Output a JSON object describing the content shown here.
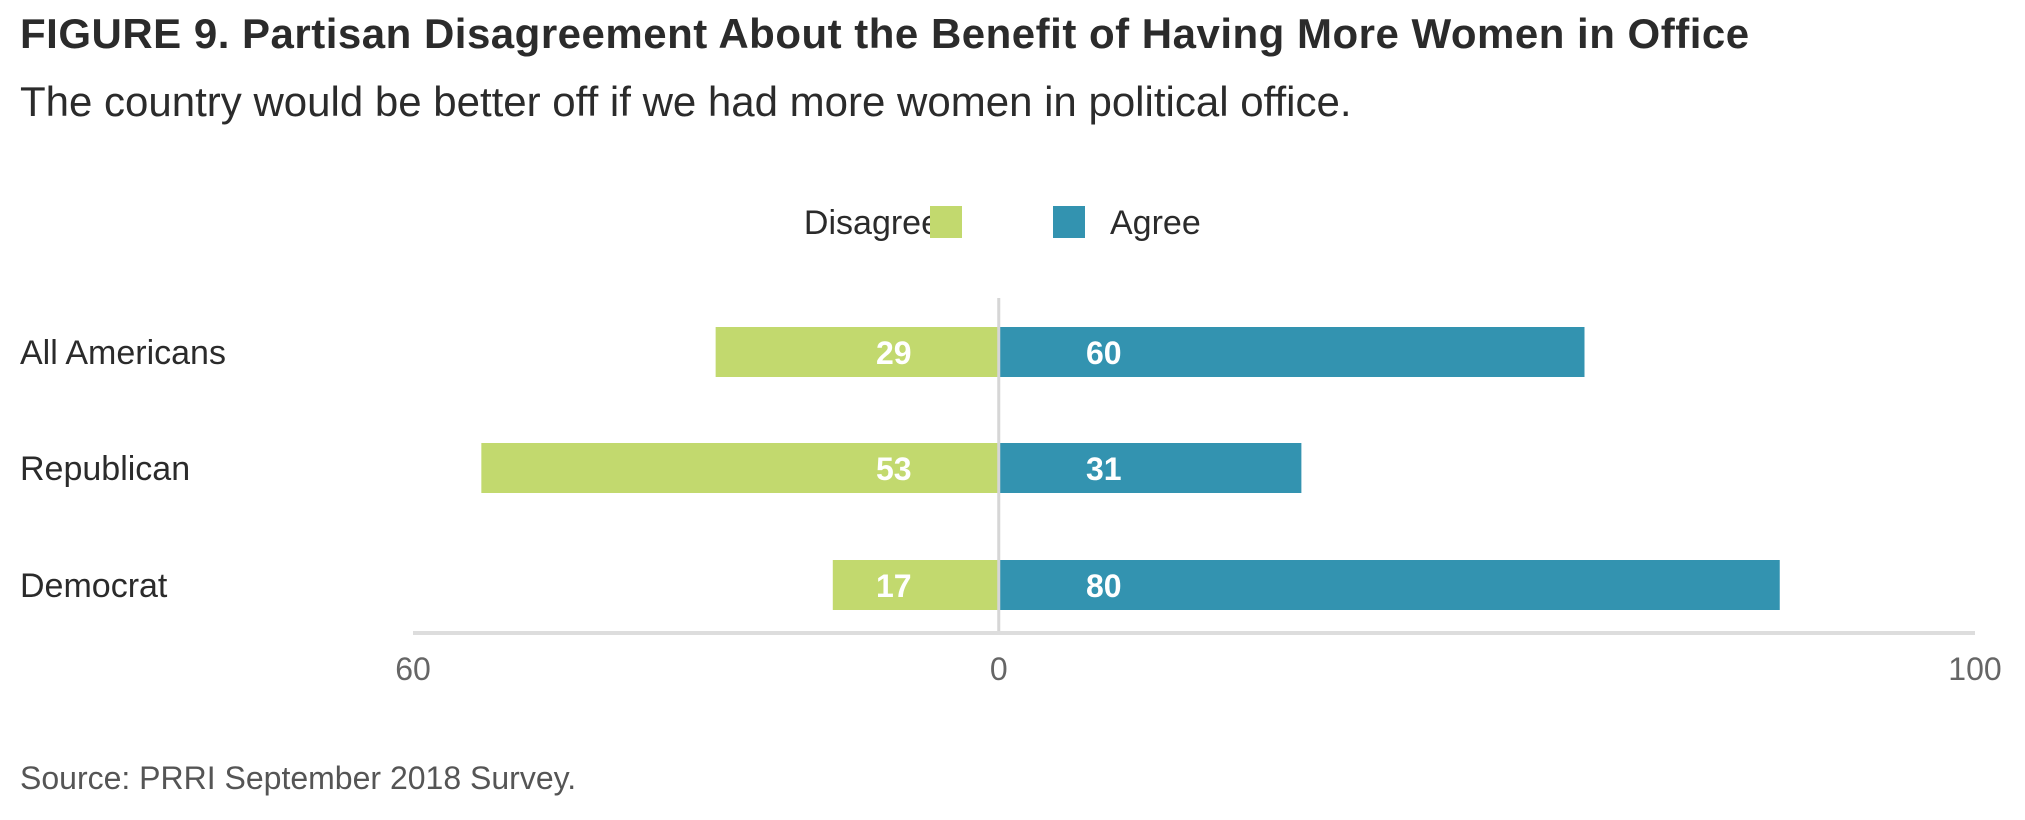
{
  "header": {
    "title": "FIGURE 9.  Partisan Disagreement About the Benefit of Having More Women in Office",
    "subtitle": "The country would be better off if we had more women in political office."
  },
  "footer": {
    "source": "Source: PRRI September 2018 Survey."
  },
  "colors": {
    "disagree": "#c2d96e",
    "agree": "#3393b0",
    "axis": "#dddddd",
    "center_line": "#d6d6d6"
  },
  "chart_data": {
    "type": "bar",
    "orientation": "horizontal-diverging",
    "title": "FIGURE 9.  Partisan Disagreement About the Benefit of Having More Women in Office",
    "subtitle": "The country would be better off if we had more women in political office.",
    "categories": [
      "All Americans",
      "Republican",
      "Democrat"
    ],
    "series": [
      {
        "name": "Disagree",
        "values": [
          29,
          53,
          17
        ],
        "direction": "left"
      },
      {
        "name": "Agree",
        "values": [
          60,
          31,
          80
        ],
        "direction": "right"
      }
    ],
    "x_ticks": [
      {
        "label": "60",
        "value": -60
      },
      {
        "label": "0",
        "value": 0
      },
      {
        "label": "100",
        "value": 100
      }
    ],
    "xlim": [
      -60,
      100
    ],
    "grid": false,
    "legend_position": "top-center"
  }
}
